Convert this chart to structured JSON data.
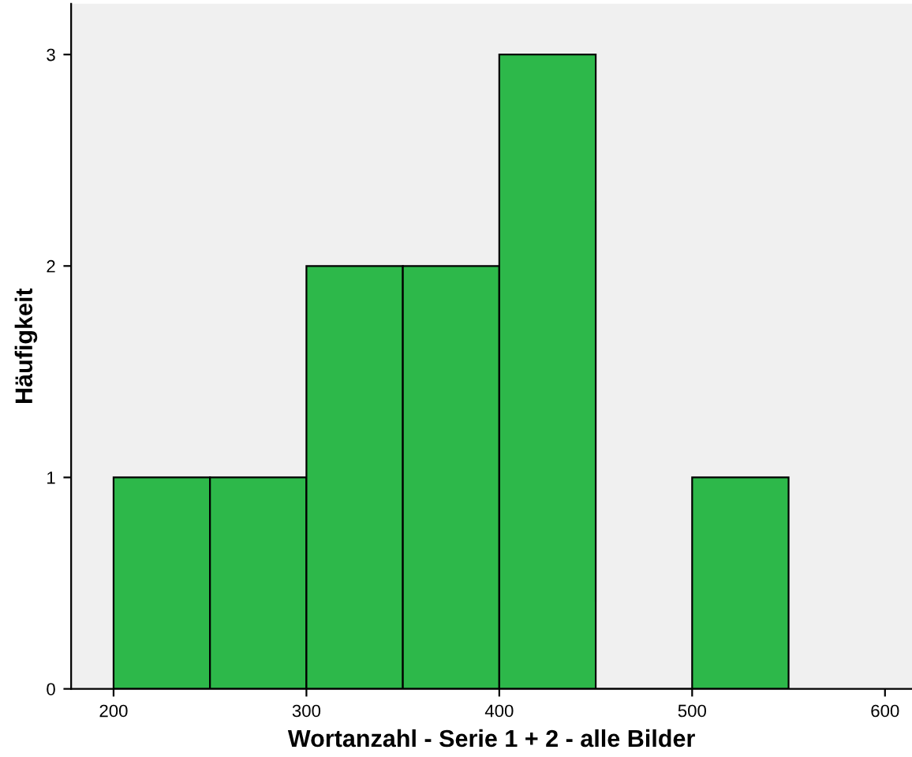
{
  "chart_data": {
    "type": "histogram",
    "xlabel": "Wortanzahl - Serie 1 + 2 - alle Bilder",
    "ylabel": "Häufigkeit",
    "bins": [
      200,
      250,
      300,
      350,
      400,
      450,
      500,
      550
    ],
    "values": [
      1,
      1,
      2,
      2,
      3,
      0,
      1
    ],
    "color": "#2db84a",
    "xlim": [
      178,
      614
    ],
    "xticks": [
      200,
      300,
      400,
      500,
      600
    ],
    "ylim": [
      0,
      3.24
    ],
    "yticks": [
      0,
      1,
      2,
      3
    ],
    "grid": false
  }
}
